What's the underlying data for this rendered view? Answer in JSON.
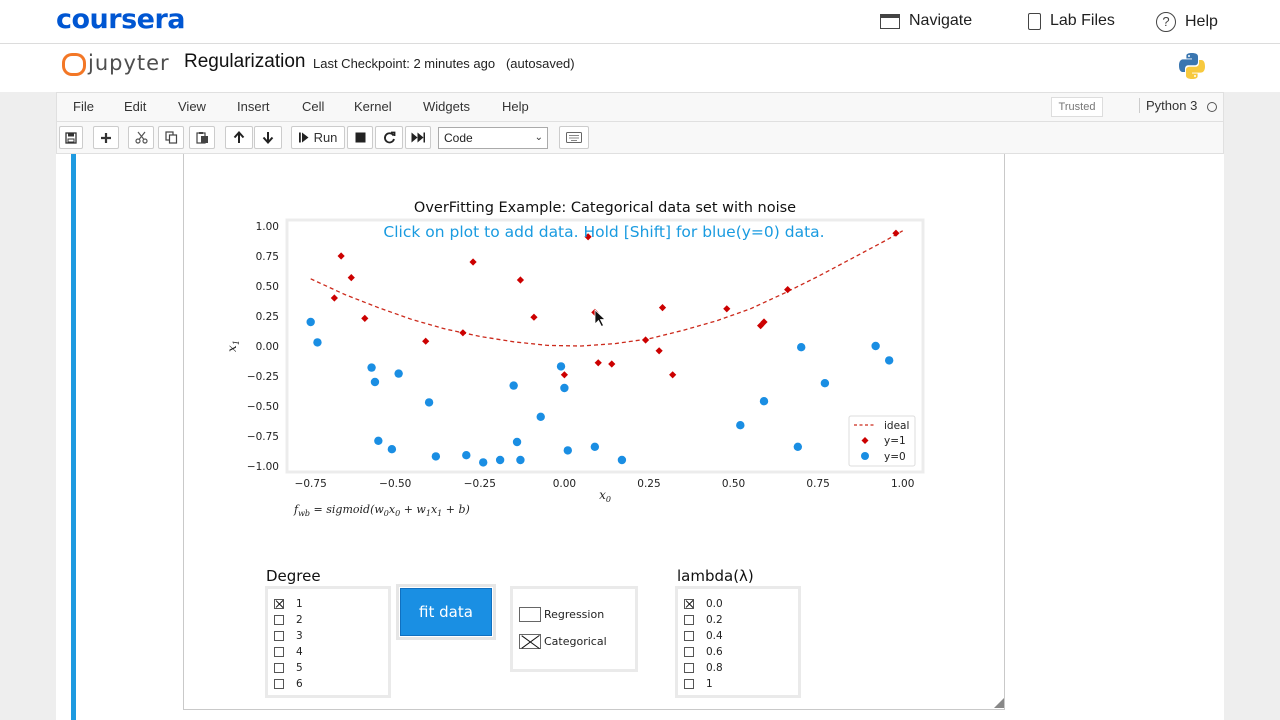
{
  "coursera": {
    "logo": "coursera",
    "nav": [
      {
        "label": "Navigate",
        "icon": "navigate-icon"
      },
      {
        "label": "Lab Files",
        "icon": "file-icon"
      },
      {
        "label": "Help",
        "icon": "help-icon"
      }
    ]
  },
  "jupyter": {
    "logo_text": "jupyter",
    "notebook_title": "Regularization",
    "checkpoint": "Last Checkpoint: 2 minutes ago",
    "autosave": "(autosaved)"
  },
  "menubar": {
    "items": [
      "File",
      "Edit",
      "View",
      "Insert",
      "Cell",
      "Kernel",
      "Widgets",
      "Help"
    ],
    "trusted": "Trusted",
    "kernel": "Python 3"
  },
  "toolbar": {
    "run_label": "Run",
    "cell_type": "Code"
  },
  "chart_data": {
    "type": "scatter",
    "title": "OverFitting Example: Categorical data set with noise",
    "annotation": "Click on plot to add data. Hold [Shift] for blue(y=0) data.",
    "xlabel": "x0",
    "ylabel": "x1",
    "xlim": [
      -0.82,
      1.06
    ],
    "ylim": [
      -1.05,
      1.05
    ],
    "xticks": [
      -0.75,
      -0.5,
      -0.25,
      0.0,
      0.25,
      0.5,
      0.75,
      1.0
    ],
    "xtick_labels": [
      "−0.75",
      "−0.50",
      "−0.25",
      "0.00",
      "0.25",
      "0.50",
      "0.75",
      "1.00"
    ],
    "yticks": [
      1.0,
      0.75,
      0.5,
      0.25,
      0.0,
      -0.25,
      -0.5,
      -0.75,
      -1.0
    ],
    "ytick_labels": [
      "1.00",
      "0.75",
      "0.50",
      "0.25",
      "0.00",
      "−0.25",
      "−0.50",
      "−0.75",
      "−1.00"
    ],
    "legend_position": "lower-right",
    "series": [
      {
        "name": "ideal",
        "kind": "line",
        "style": "dashed",
        "color": "#cc2a1c",
        "x": [
          -0.75,
          -0.65,
          -0.55,
          -0.45,
          -0.35,
          -0.25,
          -0.15,
          -0.05,
          0.05,
          0.15,
          0.25,
          0.35,
          0.45,
          0.55,
          0.65,
          0.75,
          0.85,
          0.95,
          1.0
        ],
        "y": [
          0.56,
          0.43,
          0.32,
          0.22,
          0.14,
          0.08,
          0.035,
          0.005,
          0.0,
          0.02,
          0.06,
          0.13,
          0.21,
          0.31,
          0.44,
          0.58,
          0.73,
          0.88,
          0.96
        ]
      },
      {
        "name": "y=1",
        "kind": "scatter",
        "marker": "diamond",
        "color": "#cc0000",
        "x": [
          -0.66,
          -0.63,
          -0.68,
          -0.59,
          -0.41,
          -0.27,
          -0.3,
          -0.13,
          -0.09,
          0.07,
          0.09,
          0.1,
          0.14,
          0.0,
          0.24,
          0.28,
          0.29,
          0.32,
          0.48,
          0.58,
          0.59,
          0.66,
          0.98
        ],
        "y": [
          0.75,
          0.57,
          0.4,
          0.23,
          0.04,
          0.7,
          0.11,
          0.55,
          0.24,
          0.91,
          0.28,
          -0.14,
          -0.15,
          -0.24,
          0.05,
          -0.04,
          0.32,
          -0.24,
          0.31,
          0.17,
          0.2,
          0.47,
          0.94
        ]
      },
      {
        "name": "y=0",
        "kind": "scatter",
        "marker": "circle",
        "color": "#1a8ee3",
        "x": [
          -0.75,
          -0.73,
          -0.57,
          -0.56,
          -0.49,
          -0.55,
          -0.51,
          -0.4,
          -0.38,
          -0.29,
          -0.24,
          -0.19,
          -0.15,
          -0.14,
          -0.13,
          -0.07,
          -0.01,
          0.0,
          0.01,
          0.09,
          0.17,
          0.52,
          0.59,
          0.69,
          0.7,
          0.77,
          0.92,
          0.96
        ],
        "y": [
          0.2,
          0.03,
          -0.18,
          -0.3,
          -0.23,
          -0.79,
          -0.86,
          -0.47,
          -0.92,
          -0.91,
          -0.97,
          -0.95,
          -0.33,
          -0.8,
          -0.95,
          -0.59,
          -0.17,
          -0.35,
          -0.87,
          -0.84,
          -0.95,
          -0.66,
          -0.46,
          -0.84,
          -0.01,
          -0.31,
          0.0,
          -0.12
        ]
      }
    ]
  },
  "formula": "f_wb = sigmoid(w0x0 + w1x1 + b)",
  "formula_parts": {
    "f": "f",
    "wb": "wb",
    "eq": " = sigmoid(",
    "w0": "w",
    "w0s": "0",
    "x0": "x",
    "x0s": "0",
    "plus": " + ",
    "w1": "w",
    "w1s": "1",
    "x1": "x",
    "x1s": "1",
    "end": " + b)"
  },
  "degree": {
    "title": "Degree",
    "options": [
      {
        "label": "1",
        "checked": true
      },
      {
        "label": "2",
        "checked": false
      },
      {
        "label": "3",
        "checked": false
      },
      {
        "label": "4",
        "checked": false
      },
      {
        "label": "5",
        "checked": false
      },
      {
        "label": "6",
        "checked": false
      }
    ]
  },
  "fit_button": "fit data",
  "mode": {
    "options": [
      {
        "label": "Regression",
        "checked": false
      },
      {
        "label": "Categorical",
        "checked": true
      }
    ]
  },
  "lambda": {
    "title": "lambda(λ)",
    "options": [
      {
        "label": "0.0",
        "checked": true
      },
      {
        "label": "0.2",
        "checked": false
      },
      {
        "label": "0.4",
        "checked": false
      },
      {
        "label": "0.6",
        "checked": false
      },
      {
        "label": "0.8",
        "checked": false
      },
      {
        "label": "1",
        "checked": false
      }
    ]
  }
}
